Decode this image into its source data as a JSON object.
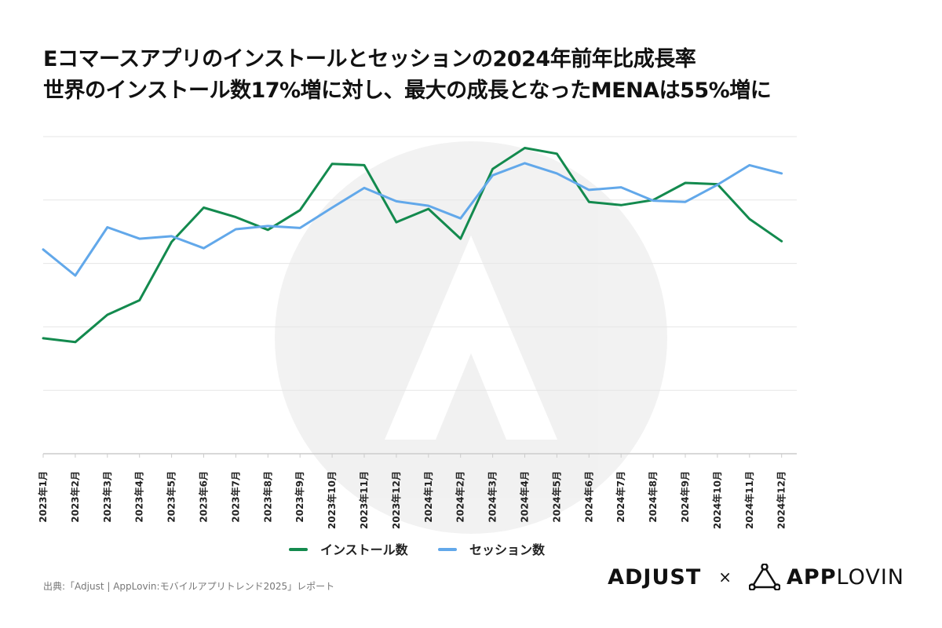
{
  "title": {
    "line1": "Eコマースアプリのインストールとセッションの2024年前年比成長率",
    "line2": "世界のインストール数17%増に対し、最大の成長となったMENAは55%増に"
  },
  "source": "出典:「Adjust | AppLovin:モバイルアプリトレンド2025」レポート",
  "logos": {
    "adjust": "ADJUST",
    "times": "×",
    "applovin_bold": "APP",
    "applovin_light": "LOVIN"
  },
  "colors": {
    "installs": "#138a4e",
    "sessions": "#62a8ea",
    "grid": "#e6e6e6"
  },
  "chart_data": {
    "type": "line",
    "categories": [
      "2023年1月",
      "2023年2月",
      "2023年3月",
      "2023年4月",
      "2023年5月",
      "2023年6月",
      "2023年7月",
      "2023年8月",
      "2023年9月",
      "2023年10月",
      "2023年11月",
      "2023年12月",
      "2024年1月",
      "2024年2月",
      "2024年3月",
      "2024年4月",
      "2024年5月",
      "2024年6月",
      "2024年7月",
      "2024年8月",
      "2024年9月",
      "2024年10月",
      "2024年11月",
      "2024年12月"
    ],
    "series": [
      {
        "name": "インストール数",
        "color": "#138a4e",
        "values": [
          18.2,
          17.6,
          21.9,
          24.2,
          33.4,
          38.8,
          37.3,
          35.3,
          38.4,
          45.7,
          45.5,
          36.5,
          38.6,
          33.9,
          44.9,
          48.2,
          47.3,
          39.7,
          39.2,
          40.0,
          42.7,
          42.5,
          37.0,
          33.5
        ]
      },
      {
        "name": "セッション数",
        "color": "#62a8ea",
        "values": [
          32.2,
          28.1,
          35.7,
          33.9,
          34.3,
          32.4,
          35.4,
          35.9,
          35.6,
          38.8,
          41.9,
          39.8,
          39.1,
          37.1,
          43.9,
          45.8,
          44.2,
          41.6,
          42.0,
          39.9,
          39.7,
          42.4,
          45.5,
          44.2
        ]
      }
    ],
    "xlabel": "",
    "ylabel": "",
    "ylim": [
      0,
      50
    ],
    "yticks": [
      0,
      10,
      20,
      30,
      40,
      50
    ],
    "y_tick_labels_visible": false,
    "grid": true,
    "legend_position": "bottom-center"
  }
}
